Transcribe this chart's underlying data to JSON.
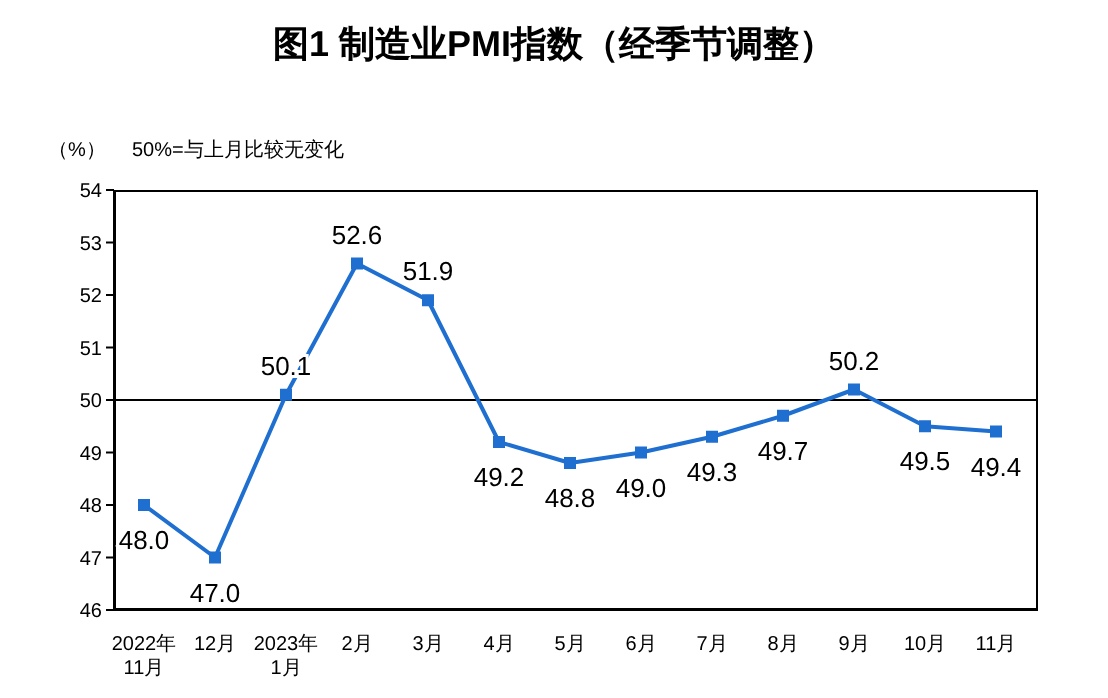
{
  "chart_data": {
    "type": "line",
    "title": "图1 制造业PMI指数（经季节调整）",
    "ylabel": "（%）",
    "annotations": [
      "50%=与上月比较无变化"
    ],
    "categories": [
      "2022年\n11月",
      "12月",
      "2023年\n1月",
      "2月",
      "3月",
      "4月",
      "5月",
      "6月",
      "7月",
      "8月",
      "9月",
      "10月",
      "11月"
    ],
    "series": [
      {
        "color": "#1f6fd0",
        "values": [
          48.0,
          47.0,
          50.1,
          52.6,
          51.9,
          49.2,
          48.8,
          49.0,
          49.3,
          49.7,
          50.2,
          49.5,
          49.4
        ],
        "value_labels": [
          "48.0",
          "47.0",
          "50.1",
          "52.6",
          "51.9",
          "49.2",
          "48.8",
          "49.0",
          "49.3",
          "49.7",
          "50.2",
          "49.5",
          "49.4"
        ]
      }
    ],
    "ylim": [
      46,
      54
    ],
    "yticks": [
      46,
      47,
      48,
      49,
      50,
      51,
      52,
      53,
      54
    ],
    "ref_lines": [
      {
        "axis": "y",
        "value": 50,
        "color": "#000000"
      }
    ],
    "marker": "square",
    "line_style": "solid",
    "grid": false
  }
}
